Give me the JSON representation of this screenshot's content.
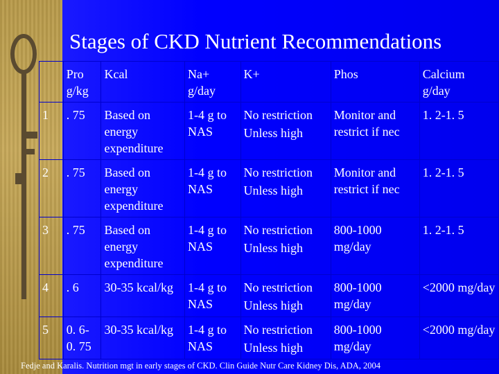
{
  "title": "Stages of CKD Nutrient Recommendations",
  "headers": [
    "",
    "Pro\ng/kg",
    "Kcal",
    "Na+\ng/day",
    "K+",
    "Phos",
    "Calcium\ng/day"
  ],
  "rows": [
    {
      "stage": "1",
      "pro": ". 75",
      "kcal": "Based on energy expenditure",
      "na": "1-4 g to NAS",
      "k1": "No restriction",
      "k2": "Unless high",
      "phos": "Monitor and restrict if nec",
      "ca": "1. 2-1. 5"
    },
    {
      "stage": "2",
      "pro": ". 75",
      "kcal": "Based on energy expenditure",
      "na": "1-4 g to NAS",
      "k1": "No restriction",
      "k2": "Unless high",
      "phos": "Monitor and restrict if nec",
      "ca": "1. 2-1. 5"
    },
    {
      "stage": "3",
      "pro": ". 75",
      "kcal": "Based on energy expenditure",
      "na": "1-4 g to NAS",
      "k1": "No restriction",
      "k2": "Unless high",
      "phos": "800-1000 mg/day",
      "ca": "1. 2-1. 5"
    },
    {
      "stage": "4",
      "pro": ". 6",
      "kcal": "30-35 kcal/kg",
      "na": "1-4 g to NAS",
      "k1": "No restriction",
      "k2": "Unless high",
      "phos": "800-1000 mg/day",
      "ca": "<2000 mg/day"
    },
    {
      "stage": "5",
      "pro": "0. 6-0. 75",
      "kcal": "30-35 kcal/kg",
      "na": "1-4 g to NAS",
      "k1": "No restriction",
      "k2": "Unless high",
      "phos": "800-1000 mg/day",
      "ca": "<2000 mg/day"
    }
  ],
  "footer": "Fedje and Karalis. Nutrition mgt in early stages of CKD. Clin Guide Nutr Care Kidney Dis, ADA, 2004"
}
